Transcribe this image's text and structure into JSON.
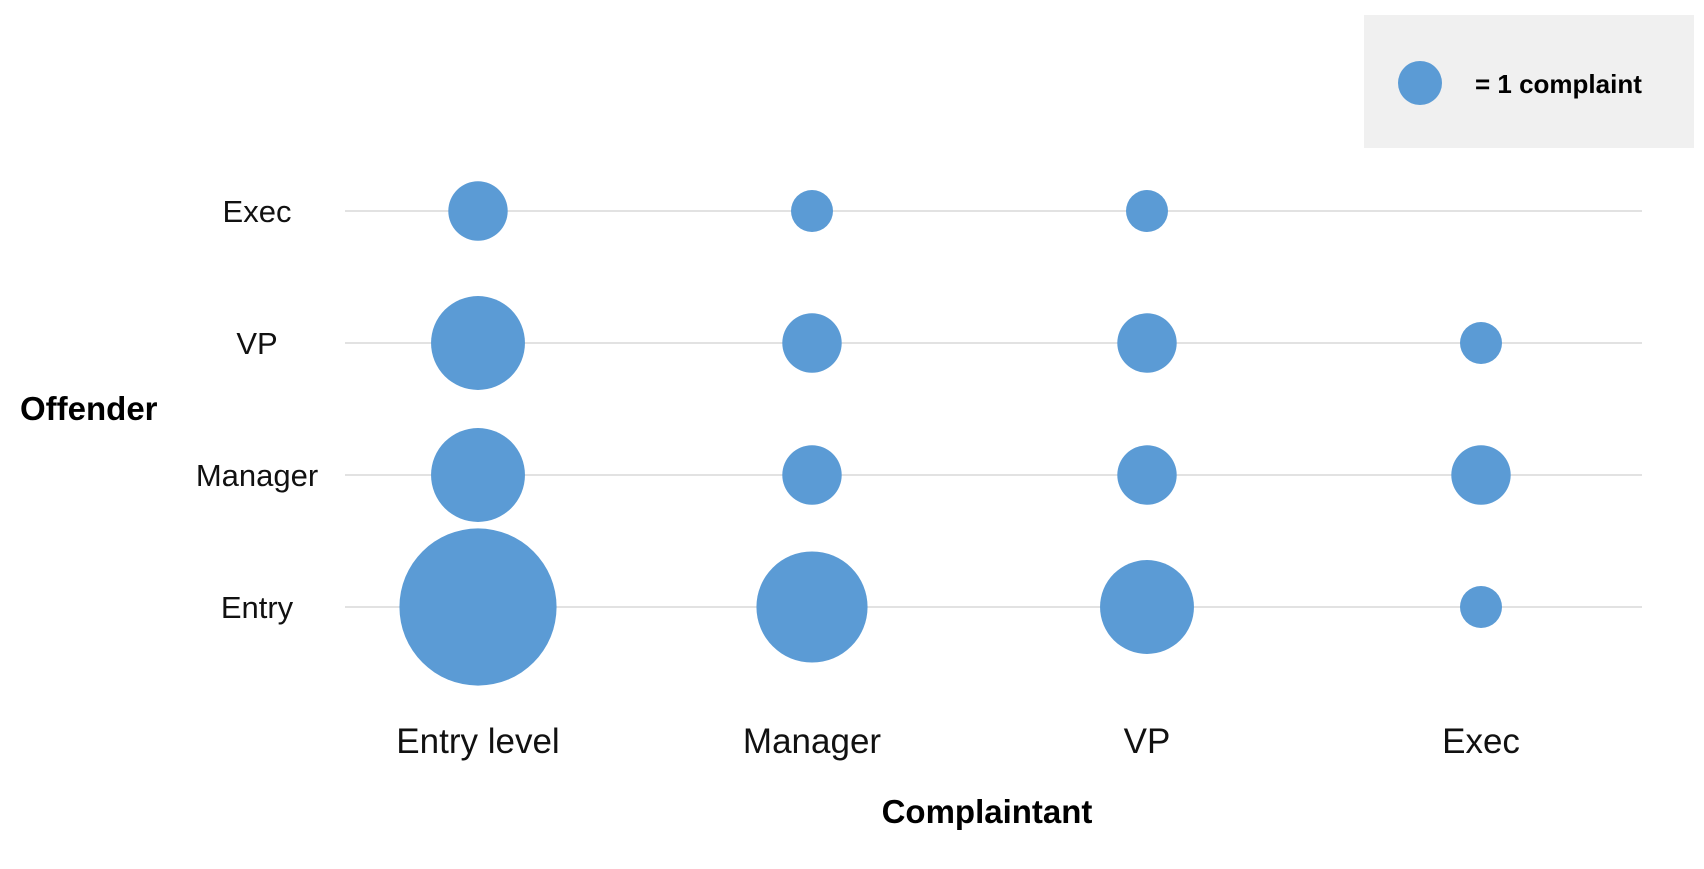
{
  "chart_data": {
    "type": "bubble",
    "x_categories": [
      "Entry level",
      "Manager",
      "VP",
      "Exec"
    ],
    "y_categories": [
      "Entry",
      "Manager",
      "VP",
      "Exec"
    ],
    "xlabel": "Complaintant",
    "ylabel": "Offender",
    "legend": {
      "label": "= 1 complaint",
      "unit_value": 1,
      "placement": "top-right"
    },
    "points": [
      {
        "x": "Entry level",
        "y": "Exec",
        "value": 2
      },
      {
        "x": "Manager",
        "y": "Exec",
        "value": 1
      },
      {
        "x": "VP",
        "y": "Exec",
        "value": 1
      },
      {
        "x": "Exec",
        "y": "Exec",
        "value": 0
      },
      {
        "x": "Entry level",
        "y": "VP",
        "value": 5
      },
      {
        "x": "Manager",
        "y": "VP",
        "value": 2
      },
      {
        "x": "VP",
        "y": "VP",
        "value": 2
      },
      {
        "x": "Exec",
        "y": "VP",
        "value": 1
      },
      {
        "x": "Entry level",
        "y": "Manager",
        "value": 5
      },
      {
        "x": "Manager",
        "y": "Manager",
        "value": 2
      },
      {
        "x": "VP",
        "y": "Manager",
        "value": 2
      },
      {
        "x": "Exec",
        "y": "Manager",
        "value": 2
      },
      {
        "x": "Entry level",
        "y": "Entry",
        "value": 14
      },
      {
        "x": "Manager",
        "y": "Entry",
        "value": 7
      },
      {
        "x": "VP",
        "y": "Entry",
        "value": 5
      },
      {
        "x": "Exec",
        "y": "Entry",
        "value": 1
      }
    ],
    "grid": "horizontal"
  },
  "colors": {
    "bubble": "#5b9bd5",
    "gridline": "#d9d9d9",
    "legend_bg": "#f0f0f0"
  }
}
